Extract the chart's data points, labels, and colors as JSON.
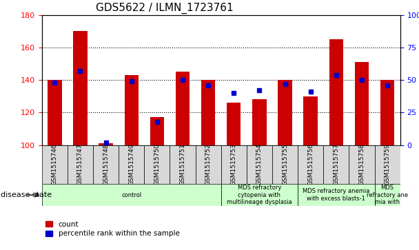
{
  "title": "GDS5622 / ILMN_1723761",
  "samples": [
    "GSM1515746",
    "GSM1515747",
    "GSM1515748",
    "GSM1515749",
    "GSM1515750",
    "GSM1515751",
    "GSM1515752",
    "GSM1515753",
    "GSM1515754",
    "GSM1515755",
    "GSM1515756",
    "GSM1515757",
    "GSM1515758",
    "GSM1515759"
  ],
  "counts": [
    140,
    170,
    101,
    143,
    117,
    145,
    140,
    126,
    128,
    140,
    130,
    165,
    151,
    140
  ],
  "percentile_ranks_pct": [
    48,
    57,
    2,
    49,
    18,
    50,
    46,
    40,
    42,
    47,
    41,
    54,
    50,
    46
  ],
  "ylim_left": [
    100,
    180
  ],
  "ylim_right": [
    0,
    100
  ],
  "yticks_left": [
    100,
    120,
    140,
    160,
    180
  ],
  "yticks_right": [
    0,
    25,
    50,
    75,
    100
  ],
  "bar_color": "#cc0000",
  "dot_color": "#0000cc",
  "bar_width": 0.55,
  "disease_groups": [
    {
      "label": "control",
      "start": 0,
      "end": 6,
      "color": "#ccffcc"
    },
    {
      "label": "MDS refractory\ncytopenia with\nmultilineage dysplasia",
      "start": 7,
      "end": 9,
      "color": "#ccffcc"
    },
    {
      "label": "MDS refractory anemia\nwith excess blasts-1",
      "start": 10,
      "end": 12,
      "color": "#ccffcc"
    },
    {
      "label": "MDS\nrefractory ane\nmia with",
      "start": 13,
      "end": 13,
      "color": "#ccffcc"
    }
  ],
  "legend_count_label": "count",
  "legend_pct_label": "percentile rank within the sample",
  "disease_state_label": "disease state"
}
